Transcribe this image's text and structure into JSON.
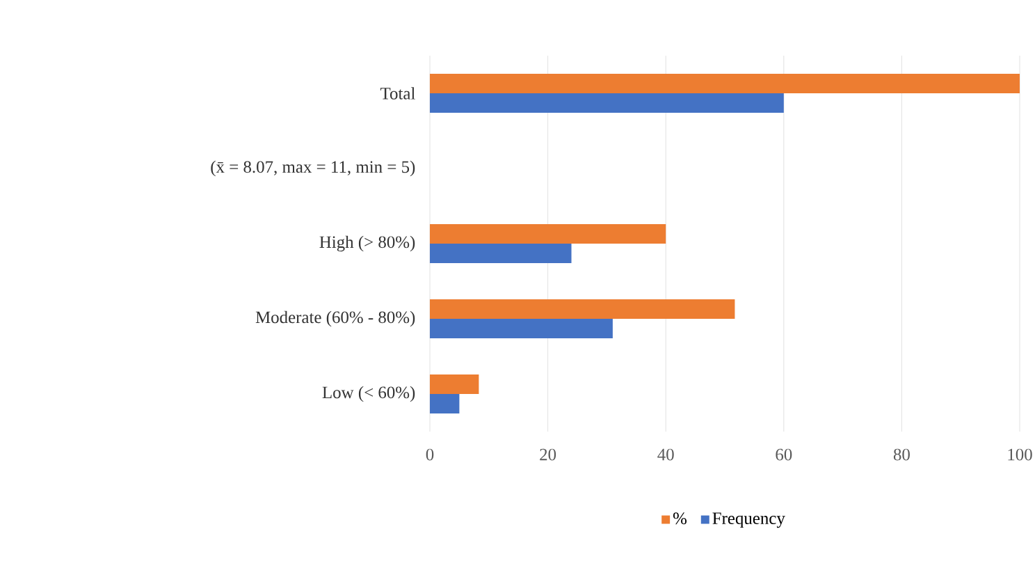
{
  "chart_data": {
    "type": "bar",
    "orientation": "horizontal",
    "categories": [
      "Total",
      "(x̄ = 8.07, max = 11, min = 5)",
      "High (> 80%)",
      "Moderate (60% - 80%)",
      "Low (< 60%)"
    ],
    "series": [
      {
        "name": "%",
        "color": "#ed7d31",
        "values": [
          100,
          null,
          40,
          51.7,
          8.3
        ]
      },
      {
        "name": "Frequency",
        "color": "#4472c4",
        "values": [
          60,
          null,
          24,
          31,
          5
        ]
      }
    ],
    "xlim": [
      0,
      100
    ],
    "xticks": [
      0,
      20,
      40,
      60,
      80,
      100
    ],
    "grid": "x",
    "legend": "bottom"
  }
}
